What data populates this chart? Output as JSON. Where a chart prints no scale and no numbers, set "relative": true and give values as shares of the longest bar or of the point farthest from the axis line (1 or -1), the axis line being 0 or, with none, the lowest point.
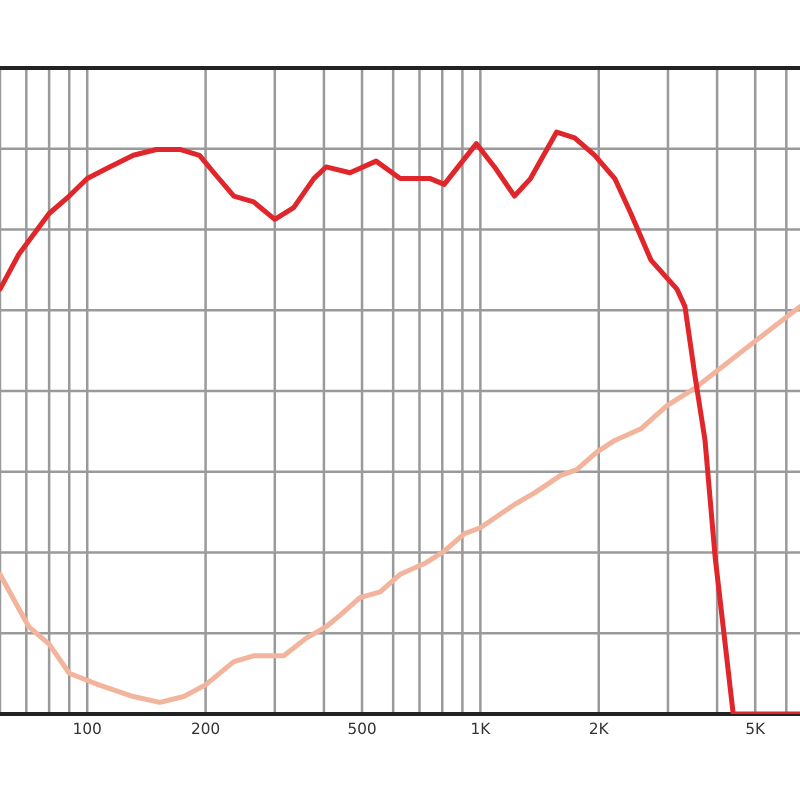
{
  "chart_data": {
    "type": "line",
    "relative": true,
    "log": "x",
    "grid": true,
    "tick_labels": "x",
    "line_style": "solid",
    "xlim": [
      60,
      6500
    ],
    "xticks": [
      {
        "value": 60,
        "label": null
      },
      {
        "value": 70,
        "label": null
      },
      {
        "value": 80,
        "label": null
      },
      {
        "value": 90,
        "label": null
      },
      100,
      200,
      {
        "value": 300,
        "label": null
      },
      {
        "value": 400,
        "label": null
      },
      500,
      {
        "value": 600,
        "label": null
      },
      {
        "value": 700,
        "label": null
      },
      {
        "value": 800,
        "label": null
      },
      {
        "value": 900,
        "label": null
      },
      {
        "value": 1000,
        "label": "1K"
      },
      {
        "value": 2000,
        "label": "2K"
      },
      {
        "value": 3000,
        "label": null
      },
      {
        "value": 4000,
        "label": null
      },
      {
        "value": 5000,
        "label": "5K"
      },
      {
        "value": 6000,
        "label": null
      }
    ],
    "series": [
      {
        "color": "#f2b49c",
        "x": [
          60,
          71,
          80,
          90,
          107,
          131,
          153,
          176,
          200,
          236,
          265,
          316,
          360,
          405,
          440,
          494,
          556,
          625,
          728,
          809,
          911,
          1000,
          1221,
          1373,
          1600,
          1758,
          1977,
          2197,
          2560,
          2982,
          3515,
          4770,
          6500
        ],
        "values": [
          0.24,
          0.15,
          0.12,
          0.07,
          0.05,
          0.03,
          0.02,
          0.03,
          0.05,
          0.09,
          0.1,
          0.1,
          0.13,
          0.15,
          0.17,
          0.2,
          0.21,
          0.24,
          0.26,
          0.28,
          0.31,
          0.32,
          0.36,
          0.38,
          0.41,
          0.42,
          0.45,
          0.47,
          0.49,
          0.53,
          0.56,
          0.63,
          0.7
        ]
      },
      {
        "color": "#e0262a",
        "x": [
          60,
          67,
          80,
          90,
          100,
          114,
          131,
          150,
          172,
          193,
          210,
          236,
          265,
          300,
          335,
          377,
          405,
          466,
          543,
          625,
          703,
          746,
          809,
          977,
          1086,
          1221,
          1341,
          1563,
          1737,
          1954,
          2197,
          2414,
          2715,
          3162,
          3314,
          3515,
          3727,
          3954,
          4396,
          6500
        ],
        "values": [
          0.73,
          0.79,
          0.86,
          0.89,
          0.92,
          0.94,
          0.96,
          0.97,
          0.97,
          0.96,
          0.93,
          0.89,
          0.88,
          0.85,
          0.87,
          0.92,
          0.94,
          0.93,
          0.95,
          0.92,
          0.92,
          0.92,
          0.91,
          0.98,
          0.94,
          0.89,
          0.92,
          1.0,
          0.99,
          0.96,
          0.92,
          0.86,
          0.78,
          0.73,
          0.7,
          0.58,
          0.47,
          0.27,
          0,
          0
        ]
      }
    ]
  }
}
